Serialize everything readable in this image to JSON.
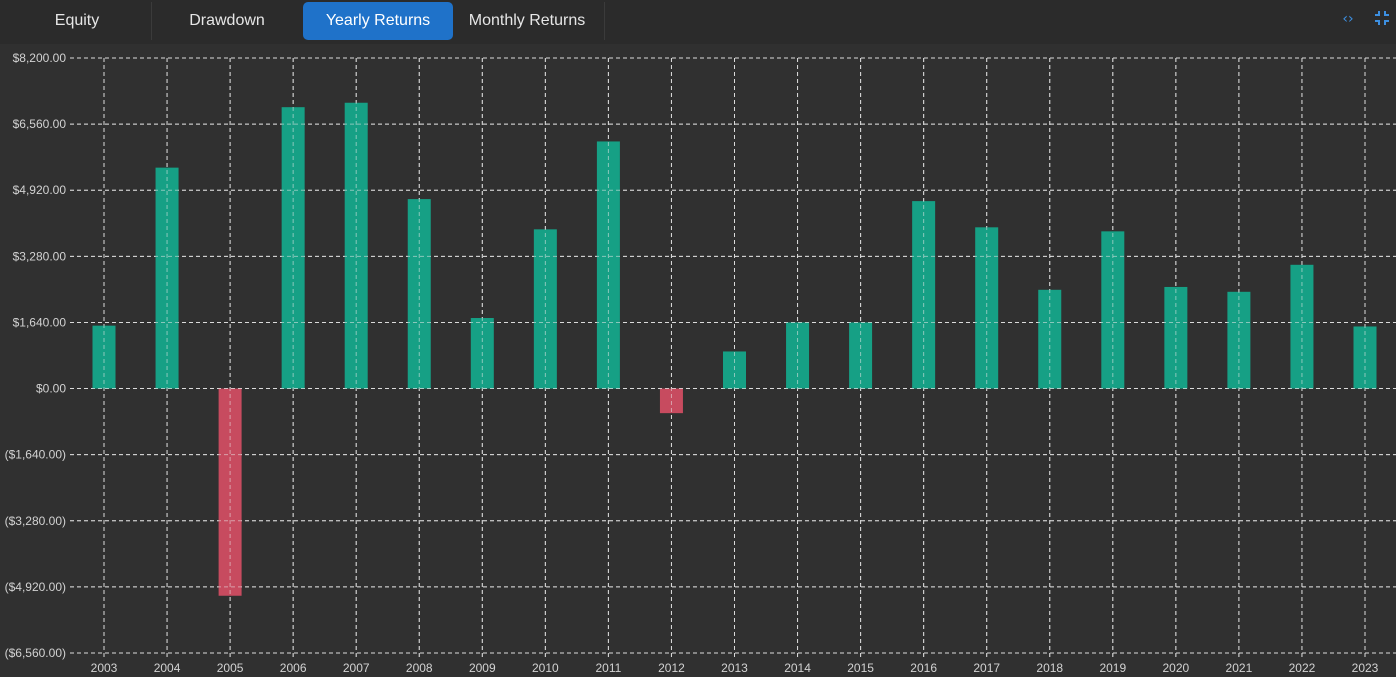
{
  "tabs": [
    {
      "label": "Equity",
      "active": false
    },
    {
      "label": "Drawdown",
      "active": false
    },
    {
      "label": "Yearly Returns",
      "active": true
    },
    {
      "label": "Monthly Returns",
      "active": false
    }
  ],
  "toolbar": {
    "icons": [
      "code-brackets-icon",
      "collapse-icon"
    ]
  },
  "colors": {
    "positive": "#16a085",
    "negative": "#c74b5f",
    "grid": "#e8e8e8",
    "background": "#303030",
    "active_tab": "#1f72c9"
  },
  "chart_data": {
    "type": "bar",
    "categories": [
      "2003",
      "2004",
      "2005",
      "2006",
      "2007",
      "2008",
      "2009",
      "2010",
      "2011",
      "2012",
      "2013",
      "2014",
      "2015",
      "2016",
      "2017",
      "2018",
      "2019",
      "2020",
      "2021",
      "2022",
      "2023"
    ],
    "values": [
      1560,
      5480,
      -5140,
      6980,
      7090,
      4700,
      1750,
      3950,
      6130,
      -610,
      920,
      1640,
      1640,
      4650,
      4000,
      2450,
      3900,
      2520,
      2400,
      3070,
      1540
    ],
    "y_ticks": [
      "$8,200.00",
      "$6,560.00",
      "$4,920.00",
      "$3,280.00",
      "$1,640.00",
      "$0.00",
      "($1,640.00)",
      "($3,280.00)",
      "($4,920.00)",
      "($6,560.00)"
    ],
    "ylim": [
      -6560,
      8200
    ],
    "grid": true,
    "title": "",
    "xlabel": "",
    "ylabel": ""
  }
}
